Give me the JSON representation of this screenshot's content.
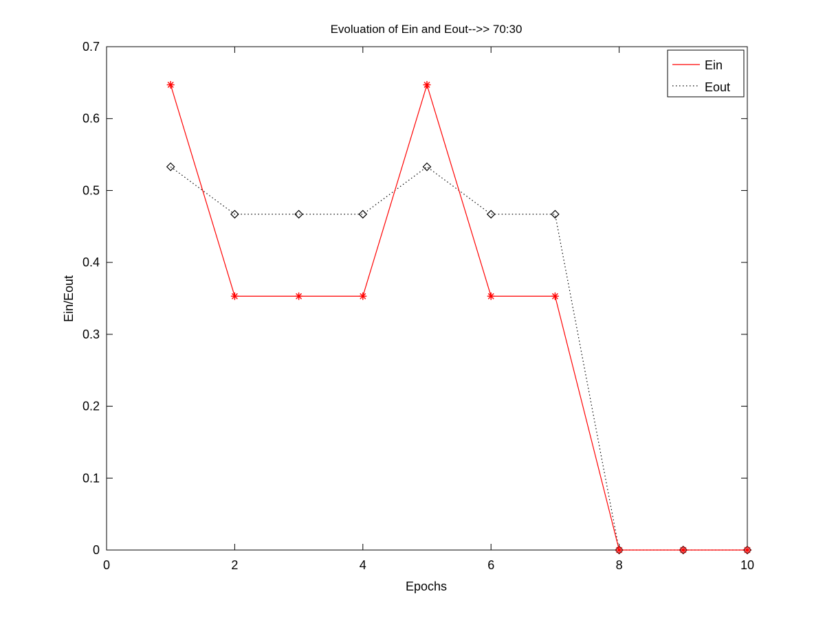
{
  "chart_data": {
    "type": "line",
    "title": "Evoluation of Ein and Eout-->> 70:30",
    "xlabel": "Epochs",
    "ylabel": "Ein/Eout",
    "xlim": [
      0,
      10
    ],
    "ylim": [
      0,
      0.7
    ],
    "xticks": [
      0,
      2,
      4,
      6,
      8,
      10
    ],
    "xtick_labels": [
      "0",
      "2",
      "4",
      "6",
      "8",
      "10"
    ],
    "yticks": [
      0,
      0.1,
      0.2,
      0.3,
      0.4,
      0.5,
      0.6,
      0.7
    ],
    "ytick_labels": [
      "0",
      "0.1",
      "0.2",
      "0.3",
      "0.4",
      "0.5",
      "0.6",
      "0.7"
    ],
    "grid": false,
    "legend_position": "top-right",
    "x": [
      1,
      2,
      3,
      4,
      5,
      6,
      7,
      8,
      9,
      10
    ],
    "series": [
      {
        "name": "Ein",
        "color": "#ff0000",
        "line_style": "solid",
        "marker": "asterisk",
        "values": [
          0.647,
          0.353,
          0.353,
          0.353,
          0.647,
          0.353,
          0.353,
          0,
          0,
          0
        ]
      },
      {
        "name": "Eout",
        "color": "#000000",
        "line_style": "dotted",
        "marker": "diamond",
        "values": [
          0.533,
          0.467,
          0.467,
          0.467,
          0.533,
          0.467,
          0.467,
          0,
          0,
          0
        ]
      }
    ]
  }
}
